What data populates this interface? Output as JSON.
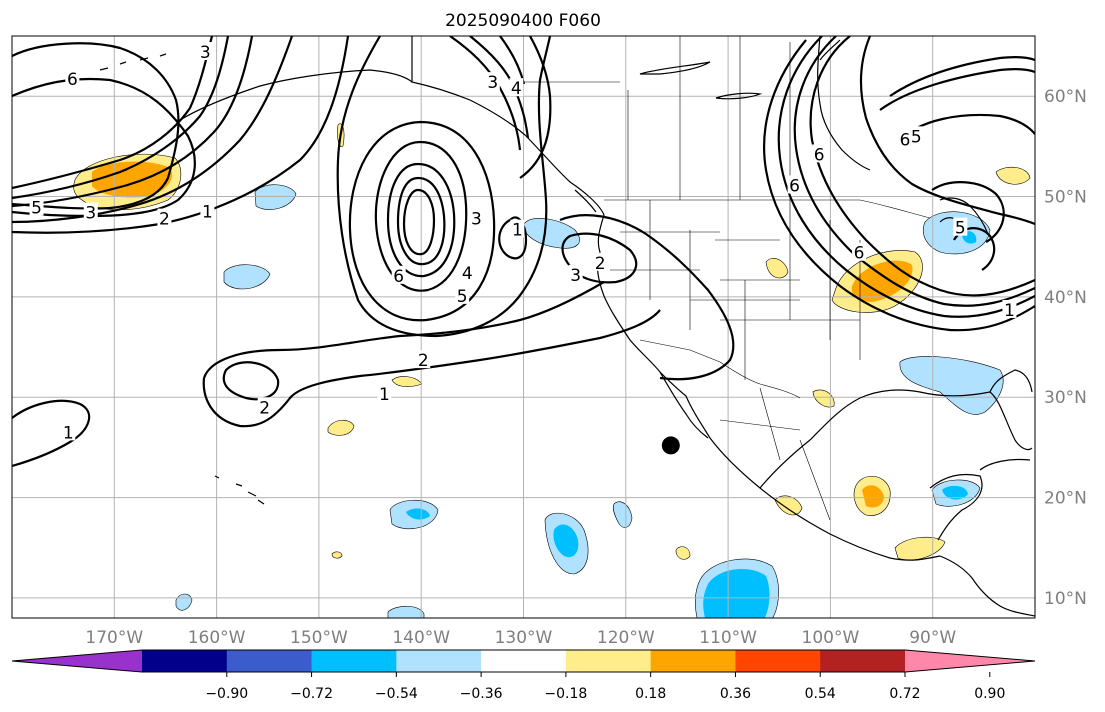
{
  "title": "2025090400 F060",
  "map": {
    "lon_ticks": [
      {
        "value": -170,
        "label": "170°W"
      },
      {
        "value": -160,
        "label": "160°W"
      },
      {
        "value": -150,
        "label": "150°W"
      },
      {
        "value": -140,
        "label": "140°W"
      },
      {
        "value": -130,
        "label": "130°W"
      },
      {
        "value": -120,
        "label": "120°W"
      },
      {
        "value": -110,
        "label": "110°W"
      },
      {
        "value": -100,
        "label": "100°W"
      },
      {
        "value": -90,
        "label": "90°W"
      }
    ],
    "lat_ticks": [
      {
        "value": 60,
        "label": "60°N"
      },
      {
        "value": 50,
        "label": "50°N"
      },
      {
        "value": 40,
        "label": "40°N"
      },
      {
        "value": 30,
        "label": "30°N"
      },
      {
        "value": 20,
        "label": "20°N"
      },
      {
        "value": 10,
        "label": "10°N"
      }
    ],
    "extent": {
      "lon_min": -180,
      "lon_max": -80,
      "lat_min": 8,
      "lat_max": 66
    },
    "grid": true,
    "marker": {
      "lon": -115.6,
      "lat": 25.2,
      "color": "#000000"
    },
    "contour_labels": [
      {
        "text": "6",
        "lon": -174.1,
        "lat": 61.7
      },
      {
        "text": "5",
        "lon": -177.6,
        "lat": 48.9
      },
      {
        "text": "3",
        "lon": -172.3,
        "lat": 48.4
      },
      {
        "text": "2",
        "lon": -165.1,
        "lat": 47.8
      },
      {
        "text": "1",
        "lon": -160.9,
        "lat": 48.5
      },
      {
        "text": "3",
        "lon": -161.1,
        "lat": 64.4
      },
      {
        "text": "3",
        "lon": -133.0,
        "lat": 61.4
      },
      {
        "text": "4",
        "lon": -130.7,
        "lat": 60.8
      },
      {
        "text": "3",
        "lon": -134.6,
        "lat": 47.8
      },
      {
        "text": "6",
        "lon": -142.2,
        "lat": 42.1
      },
      {
        "text": "5",
        "lon": -136.0,
        "lat": 40.1
      },
      {
        "text": "4",
        "lon": -135.5,
        "lat": 42.4
      },
      {
        "text": "1",
        "lon": -130.6,
        "lat": 46.7
      },
      {
        "text": "3",
        "lon": -124.9,
        "lat": 42.2
      },
      {
        "text": "2",
        "lon": -122.5,
        "lat": 43.4
      },
      {
        "text": "2",
        "lon": -139.8,
        "lat": 33.7
      },
      {
        "text": "1",
        "lon": -143.6,
        "lat": 30.3
      },
      {
        "text": "2",
        "lon": -155.3,
        "lat": 29.0
      },
      {
        "text": "1",
        "lon": -174.5,
        "lat": 26.5
      },
      {
        "text": "6",
        "lon": -92.7,
        "lat": 55.7
      },
      {
        "text": "5",
        "lon": -91.6,
        "lat": 56.0
      },
      {
        "text": "6",
        "lon": -101.1,
        "lat": 54.2
      },
      {
        "text": "6",
        "lon": -103.5,
        "lat": 51.1
      },
      {
        "text": "6",
        "lon": -97.2,
        "lat": 44.4
      },
      {
        "text": "5",
        "lon": -87.3,
        "lat": 46.9
      },
      {
        "text": "1",
        "lon": -82.5,
        "lat": 38.7
      }
    ]
  },
  "colorbar": {
    "colors": [
      "#9932cc",
      "#00008b",
      "#3d5ccc",
      "#00bfff",
      "#b0e2ff",
      "#ffffff",
      "#ffec8b",
      "#ffa500",
      "#ff4500",
      "#b22222",
      "#ff88aa"
    ],
    "ticks": [
      "−0.90",
      "−0.72",
      "−0.54",
      "−0.36",
      "−0.18",
      "0.18",
      "0.36",
      "0.54",
      "0.72",
      "0.90"
    ]
  }
}
